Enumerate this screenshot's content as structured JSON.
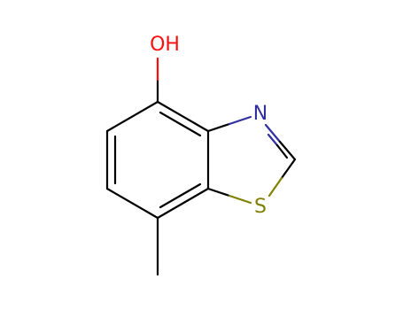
{
  "atoms": {
    "hydroxyl": "OH",
    "nitrogen": "N",
    "sulfur": "S"
  }
}
